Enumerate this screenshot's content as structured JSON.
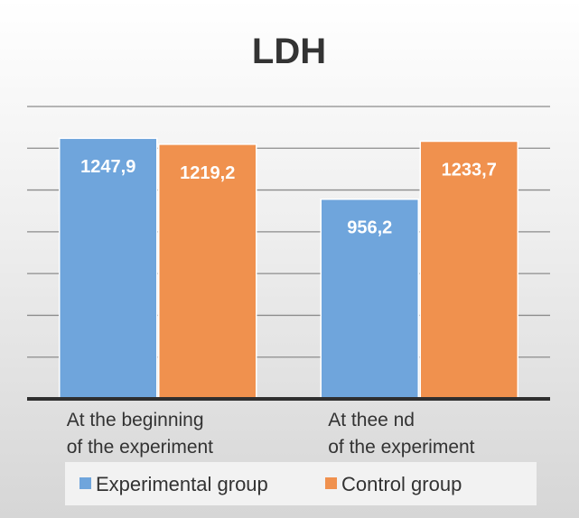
{
  "chart_data": {
    "type": "bar",
    "title": "LDH",
    "categories": [
      [
        "At the beginning",
        "of the experiment"
      ],
      [
        "At thee nd",
        "of the experiment"
      ]
    ],
    "series": [
      {
        "name": "Experimental group",
        "values": [
          1247.9,
          956.2
        ],
        "labels": [
          "1247,9",
          "956,2"
        ],
        "color": "#6fa5dc"
      },
      {
        "name": "Control group",
        "values": [
          1219.2,
          1233.7
        ],
        "labels": [
          "1219,2",
          "1233,7"
        ],
        "color": "#f0914e"
      }
    ],
    "ylim": [
      0,
      1400
    ],
    "grid": true,
    "legend": "bottom",
    "xlabel": "",
    "ylabel": ""
  }
}
